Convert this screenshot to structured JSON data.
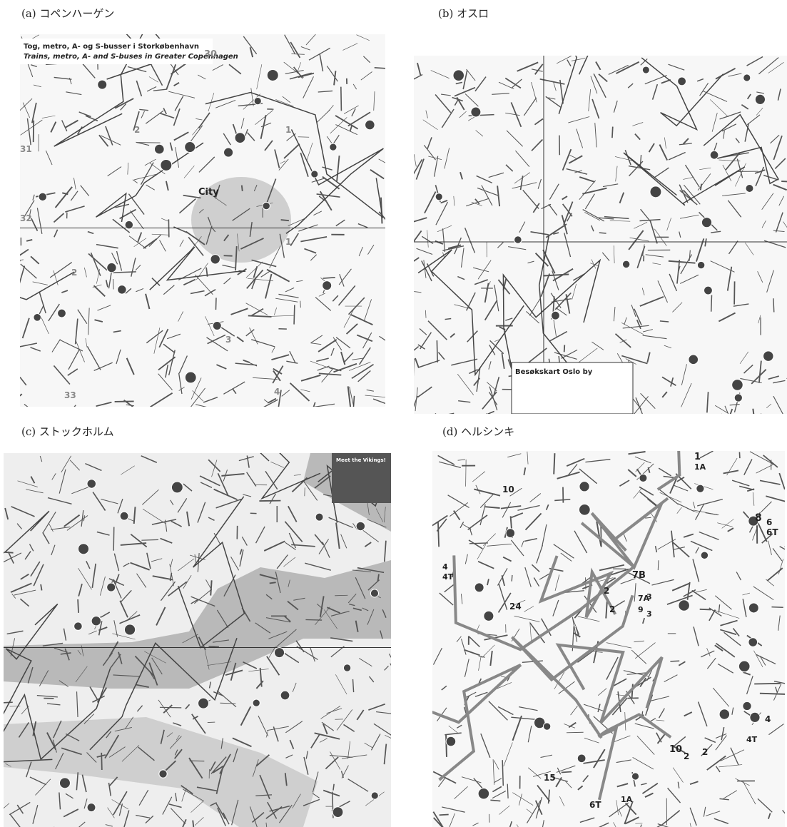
{
  "panels": [
    {
      "caption": "(a) コペンハーゲン",
      "title": "Tog, metro, A- og S-busser i Storkøbenhavn",
      "subtitle": "Trains, metro, A- and S-buses in Greater Copenhagen",
      "labels": [
        "City",
        "30",
        "31",
        "32",
        "33",
        "1",
        "1",
        "2",
        "2",
        "3",
        "4"
      ]
    },
    {
      "caption": "(b) オスロ",
      "title": "Besøkskart Oslo by",
      "labels": []
    },
    {
      "caption": "(c) ストックホルム",
      "title": "Meet the Vikings!",
      "labels": []
    },
    {
      "caption": "(d) ヘルシンキ",
      "labels": [
        "1",
        "1A",
        "10",
        "7B",
        "7A",
        "9",
        "2",
        "2",
        "3",
        "3",
        "4",
        "4T",
        "24",
        "8",
        "6",
        "6T",
        "4",
        "4T",
        "10",
        "2",
        "2",
        "6T",
        "1A",
        "15"
      ]
    }
  ]
}
